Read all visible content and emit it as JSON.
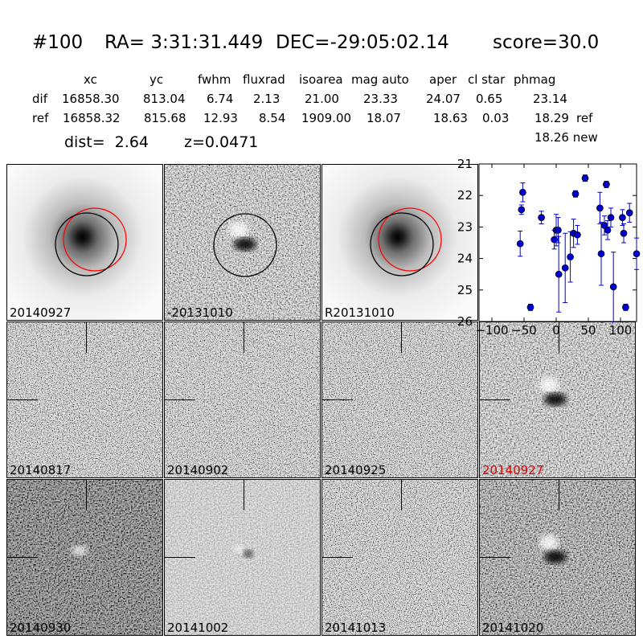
{
  "header": {
    "id": "#100",
    "ra": "RA= 3:31:31.449",
    "dec": "DEC=-29:05:02.14",
    "score": "score=30.0"
  },
  "table": {
    "columns": [
      "xc",
      "yc",
      "fwhm",
      "fluxrad",
      "isoarea",
      "mag auto",
      "aper",
      "cl star",
      "phmag"
    ],
    "rows": [
      {
        "name": "dif",
        "values": [
          "16858.30",
          "813.04",
          "6.74",
          "2.13",
          "21.00",
          "23.33",
          "24.07",
          "0.65",
          "23.14"
        ],
        "extra": ""
      },
      {
        "name": "ref",
        "values": [
          "16858.32",
          "815.68",
          "12.93",
          "8.54",
          "1909.00",
          "18.07",
          "18.63",
          "0.03",
          "18.29"
        ],
        "extra": "ref"
      }
    ],
    "new_phmag": "18.26 new",
    "dist": "dist=  2.64",
    "z": "z=0.0471"
  },
  "panels": [
    {
      "label": "20140927",
      "type": "galaxy",
      "red": false
    },
    {
      "label": "-20131010",
      "type": "dipole",
      "red": false
    },
    {
      "label": "R20131010",
      "type": "galaxy",
      "red": false
    },
    {
      "label": "20140817",
      "type": "noise",
      "red": false
    },
    {
      "label": "20140902",
      "type": "noise",
      "red": false
    },
    {
      "label": "20140925",
      "type": "noise",
      "red": false
    },
    {
      "label": "20140927",
      "type": "dipole",
      "red": true
    },
    {
      "label": "20140930",
      "type": "dark",
      "red": false
    },
    {
      "label": "20141002",
      "type": "faint",
      "red": false
    },
    {
      "label": "20141013",
      "type": "noise",
      "red": false
    },
    {
      "label": "20141020",
      "type": "dipole2",
      "red": false
    }
  ],
  "colors": {
    "marker": "#0000cc",
    "red_circle": "#ff0000",
    "black_circle": "#000000",
    "label_red": "#e00000"
  },
  "chart_data": {
    "type": "scatter",
    "title": "",
    "xlabel": "",
    "ylabel": "",
    "xlim": [
      -120,
      125
    ],
    "ylim": [
      26,
      21
    ],
    "xticks": [
      -100,
      -50,
      0,
      50,
      100
    ],
    "xtick_labels": [
      "−100",
      "−50",
      "0",
      "50",
      "100"
    ],
    "yticks": [
      21,
      22,
      23,
      24,
      25,
      26
    ],
    "ytick_labels": [
      "21",
      "22",
      "23",
      "24",
      "25",
      "26"
    ],
    "y_inverted": true,
    "grid": false,
    "series": [
      {
        "x": [
          -56,
          -54,
          -52,
          -40,
          -23,
          -3,
          0,
          3,
          4,
          14,
          22,
          27,
          30,
          33,
          45,
          68,
          70,
          75,
          78,
          80,
          85,
          89,
          103,
          105,
          108,
          114,
          125
        ],
        "y": [
          23.53,
          22.45,
          21.9,
          25.55,
          22.7,
          23.4,
          23.1,
          23.1,
          24.5,
          24.3,
          23.95,
          23.2,
          21.95,
          23.25,
          21.45,
          22.4,
          23.85,
          22.95,
          21.65,
          23.1,
          22.7,
          24.9,
          22.7,
          23.2,
          25.55,
          22.55,
          23.85
        ],
        "yerr": [
          0.4,
          0.15,
          0.3,
          0.1,
          0.2,
          0.3,
          0.5,
          0.4,
          1.2,
          1.1,
          0.8,
          0.45,
          0.1,
          0.3,
          0.1,
          0.5,
          1.0,
          0.3,
          0.1,
          0.3,
          0.3,
          1.1,
          0.25,
          0.3,
          0.1,
          0.3,
          0.5
        ]
      }
    ]
  }
}
